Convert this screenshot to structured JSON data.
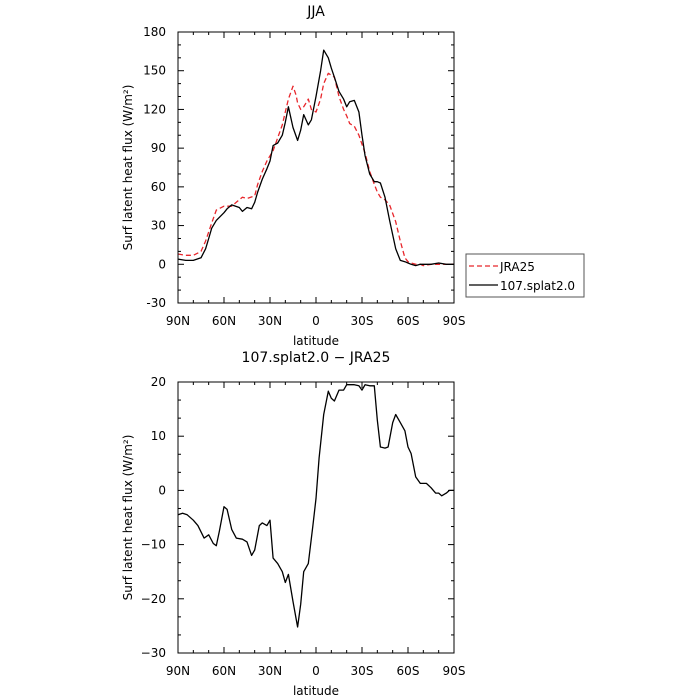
{
  "chart_data": [
    {
      "type": "line",
      "title": "JJA",
      "xlabel": "latitude",
      "ylabel": "Surf latent heat flux (W/m²)",
      "xlim": [
        90,
        -90
      ],
      "ylim": [
        -30,
        180
      ],
      "xticks": [
        90,
        60,
        30,
        0,
        -30,
        -60,
        -90
      ],
      "xtick_labels": [
        "90N",
        "60N",
        "30N",
        "0",
        "30S",
        "60S",
        "90S"
      ],
      "yticks": [
        -30,
        0,
        30,
        60,
        90,
        120,
        150,
        180
      ],
      "ytick_labels": [
        "-30",
        "0",
        "30",
        "60",
        "90",
        "120",
        "150",
        "180"
      ],
      "legend_position": "right",
      "series": [
        {
          "name": "JRA25",
          "color": "#e8262b",
          "dash": "dashed",
          "x": [
            90,
            85,
            80,
            75,
            72,
            68,
            65,
            60,
            55,
            52,
            48,
            45,
            40,
            38,
            35,
            32,
            28,
            25,
            22,
            20,
            18,
            15,
            13,
            12,
            10,
            8,
            5,
            3,
            0,
            -3,
            -5,
            -8,
            -12,
            -15,
            -18,
            -20,
            -22,
            -25,
            -28,
            -32,
            -35,
            -38,
            -40,
            -42,
            -45,
            -48,
            -52,
            -55,
            -58,
            -60,
            -62,
            -65,
            -68,
            -70,
            -75,
            -80,
            -85,
            -90
          ],
          "y": [
            8,
            7,
            7,
            10,
            18,
            32,
            42,
            45,
            45,
            48,
            52,
            51,
            53,
            62,
            72,
            80,
            88,
            98,
            108,
            118,
            128,
            138,
            131,
            125,
            120,
            122,
            128,
            120,
            118,
            128,
            140,
            148,
            145,
            130,
            120,
            115,
            109,
            107,
            100,
            86,
            72,
            62,
            56,
            52,
            50,
            46,
            33,
            18,
            5,
            2,
            1,
            0,
            0,
            -1,
            0,
            0,
            0,
            0
          ]
        },
        {
          "name": "107.splat2.0",
          "color": "#000000",
          "dash": "solid",
          "x": [
            90,
            85,
            80,
            75,
            72,
            70,
            68,
            65,
            60,
            58,
            55,
            50,
            48,
            45,
            42,
            40,
            38,
            35,
            32,
            30,
            28,
            25,
            22,
            20,
            18,
            15,
            12,
            10,
            8,
            5,
            3,
            0,
            -3,
            -5,
            -8,
            -10,
            -12,
            -15,
            -18,
            -20,
            -22,
            -25,
            -28,
            -30,
            -32,
            -35,
            -38,
            -40,
            -42,
            -45,
            -48,
            -52,
            -55,
            -58,
            -60,
            -62,
            -65,
            -68,
            -70,
            -75,
            -80,
            -85,
            -90
          ],
          "y": [
            4,
            3,
            3,
            5,
            12,
            20,
            28,
            34,
            40,
            43,
            46,
            44,
            41,
            44,
            43,
            48,
            56,
            66,
            74,
            80,
            92,
            94,
            100,
            110,
            122,
            106,
            96,
            104,
            116,
            108,
            112,
            130,
            150,
            166,
            160,
            152,
            145,
            134,
            128,
            122,
            126,
            127,
            118,
            100,
            84,
            70,
            64,
            64,
            63,
            52,
            34,
            12,
            3,
            2,
            1,
            0,
            -1,
            0,
            0,
            0,
            1,
            0,
            0
          ]
        }
      ]
    },
    {
      "type": "line",
      "title": "107.splat2.0 − JRA25",
      "xlabel": "latitude",
      "ylabel": "Surf latent heat flux (W/m²)",
      "xlim": [
        90,
        -90
      ],
      "ylim": [
        -30,
        20
      ],
      "xticks": [
        90,
        60,
        30,
        0,
        -30,
        -60,
        -90
      ],
      "xtick_labels": [
        "90N",
        "60N",
        "30N",
        "0",
        "30S",
        "60S",
        "90S"
      ],
      "yticks": [
        -30,
        -20,
        -10,
        0,
        10,
        20
      ],
      "ytick_labels": [
        "−30",
        "−20",
        "−10",
        "0",
        "10",
        "20"
      ],
      "series": [
        {
          "color": "#000000",
          "dash": "solid",
          "x": [
            90,
            87,
            84,
            80,
            77,
            73,
            70,
            67,
            65,
            63,
            60,
            58,
            55,
            52,
            48,
            45,
            42,
            40,
            37,
            35,
            32,
            30,
            28,
            25,
            22,
            20,
            18,
            15,
            12,
            10,
            8,
            5,
            2,
            0,
            -2,
            -5,
            -8,
            -10,
            -12,
            -15,
            -18,
            -20,
            -22,
            -25,
            -28,
            -30,
            -32,
            -35,
            -38,
            -40,
            -42,
            -45,
            -47,
            -50,
            -52,
            -55,
            -58,
            -60,
            -62,
            -65,
            -68,
            -70,
            -72,
            -75,
            -78,
            -80,
            -82,
            -85,
            -87,
            -90
          ],
          "y": [
            -4.5,
            -4.2,
            -4.5,
            -5.5,
            -6.5,
            -8.8,
            -8.2,
            -9.8,
            -10.2,
            -7.5,
            -3,
            -3.5,
            -7.2,
            -8.8,
            -9,
            -9.5,
            -12,
            -11,
            -6.5,
            -6,
            -6.5,
            -5.5,
            -12.5,
            -13.5,
            -15,
            -17,
            -15.5,
            -20.5,
            -25.2,
            -21,
            -15,
            -13.5,
            -6.5,
            -1.5,
            6,
            14,
            18.3,
            17,
            16.5,
            18.5,
            18.5,
            19.5,
            19.5,
            19.5,
            19.3,
            18.5,
            19.5,
            19.3,
            19.3,
            13,
            8,
            7.8,
            8,
            12.5,
            14,
            12.5,
            11,
            8,
            6.8,
            2.5,
            1.3,
            1.3,
            1.3,
            0.5,
            -0.5,
            -0.5,
            -1,
            -0.5,
            0,
            0
          ]
        }
      ]
    }
  ]
}
